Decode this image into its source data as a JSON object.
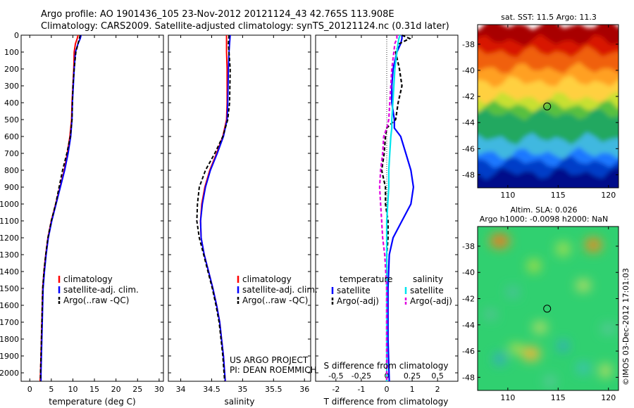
{
  "header": {
    "line1": "Argo profile: AO 1901436_105 23-Nov-2012 20121124_43 42.765S 113.908E",
    "line2": "Climatology: CARS2009. Satellite-adjusted climatology: synTS_20121124.nc (0.31d later)"
  },
  "colors": {
    "climatology": "#ff0000",
    "satellite": "#0000ff",
    "argo": "#000000",
    "satellite_salinity": "#00e5ee",
    "argo_salinity": "#e000e0"
  },
  "chart_data": [
    {
      "type": "line",
      "name": "temperature",
      "xlabel": "temperature (deg C)",
      "xlim": [
        -2,
        31
      ],
      "xticks": [
        0,
        5,
        10,
        15,
        20,
        25,
        30
      ],
      "ylim": [
        2050,
        0
      ],
      "yticks": [
        0,
        100,
        200,
        300,
        400,
        500,
        600,
        700,
        800,
        900,
        1000,
        1100,
        1200,
        1300,
        1400,
        1500,
        1600,
        1700,
        1800,
        1900,
        2000
      ],
      "y": [
        0,
        20,
        50,
        100,
        200,
        300,
        400,
        500,
        600,
        700,
        800,
        900,
        1000,
        1100,
        1200,
        1300,
        1400,
        1500,
        1700,
        1900,
        2000,
        2050
      ],
      "series": [
        {
          "name": "climatology",
          "x": [
            11.2,
            11.0,
            10.6,
            10.3,
            10.2,
            10.0,
            9.8,
            9.7,
            9.3,
            8.7,
            8.0,
            7.0,
            6.0,
            5.0,
            4.2,
            3.7,
            3.3,
            3.0,
            2.8,
            2.6,
            2.5,
            2.4
          ]
        },
        {
          "name": "satellite-adj. clim.",
          "x": [
            11.9,
            11.7,
            11.2,
            10.6,
            10.3,
            10.1,
            9.9,
            9.8,
            9.5,
            8.9,
            8.1,
            7.1,
            6.1,
            5.1,
            4.3,
            3.8,
            3.4,
            3.1,
            2.9,
            2.7,
            2.6,
            2.6
          ]
        },
        {
          "name": "Argo(..raw -QC)",
          "x": [
            11.7,
            11.5,
            11.2,
            10.7,
            10.3,
            10.0,
            9.9,
            9.8,
            9.4,
            8.6,
            7.6,
            6.8,
            6.0,
            5.0,
            4.2,
            3.7,
            3.3,
            3.0,
            2.8,
            2.6,
            2.5,
            2.5
          ]
        }
      ],
      "legend": [
        "climatology",
        "satellite-adj. clim.",
        "Argo(..raw -QC)"
      ]
    },
    {
      "type": "line",
      "name": "salinity",
      "xlabel": "salinity",
      "xlim": [
        33.8,
        36.1
      ],
      "xticks": [
        34,
        34.5,
        35,
        35.5,
        36
      ],
      "xticklabels": [
        "34",
        "34.5",
        "35",
        "35.5",
        "36"
      ],
      "ylim": [
        2050,
        0
      ],
      "y": [
        0,
        50,
        100,
        200,
        400,
        500,
        600,
        700,
        800,
        900,
        1000,
        1100,
        1200,
        1300,
        1400,
        1500,
        1600,
        1700,
        1800,
        1900,
        2000,
        2050
      ],
      "series": [
        {
          "name": "climatology",
          "x": [
            34.74,
            34.74,
            34.74,
            34.75,
            34.75,
            34.74,
            34.68,
            34.58,
            34.47,
            34.39,
            34.34,
            34.32,
            34.33,
            34.38,
            34.45,
            34.52,
            34.58,
            34.63,
            34.66,
            34.69,
            34.71,
            34.72
          ]
        },
        {
          "name": "satellite-adj. clim.",
          "x": [
            34.8,
            34.79,
            34.78,
            34.77,
            34.76,
            34.75,
            34.69,
            34.59,
            34.48,
            34.4,
            34.35,
            34.32,
            34.33,
            34.38,
            34.45,
            34.52,
            34.58,
            34.63,
            34.66,
            34.69,
            34.71,
            34.72
          ]
        },
        {
          "name": "Argo(..raw -QC)",
          "x": [
            34.78,
            34.77,
            34.78,
            34.8,
            34.79,
            34.76,
            34.68,
            34.55,
            34.4,
            34.3,
            34.27,
            34.26,
            34.3,
            34.37,
            34.44,
            34.51,
            34.57,
            34.62,
            34.65,
            34.68,
            34.7,
            34.71
          ]
        }
      ],
      "legend": [
        "climatology",
        "satellite-adj. clim.",
        "Argo(..raw -QC)"
      ],
      "annotation": [
        "US ARGO PROJECT",
        "PI: DEAN ROEMMICH"
      ]
    },
    {
      "type": "line",
      "name": "difference",
      "xlabel": "T difference from climatology",
      "xlabel_top": "S difference from climatology",
      "xlim": [
        -2.8,
        2.8
      ],
      "xticks": [
        -2,
        -1,
        0,
        1,
        2
      ],
      "xticks_s": [
        -0.5,
        -0.25,
        0,
        0.25,
        0.5
      ],
      "ylim": [
        2050,
        0
      ],
      "y": [
        0,
        20,
        50,
        100,
        200,
        300,
        400,
        500,
        550,
        600,
        700,
        800,
        900,
        1000,
        1100,
        1200,
        1300,
        1500,
        1800,
        2050
      ],
      "series": [
        {
          "name": "temperature satellite",
          "x": [
            0.6,
            0.6,
            0.55,
            0.4,
            0.25,
            0.2,
            0.2,
            0.3,
            0.3,
            0.55,
            0.75,
            0.95,
            1.05,
            0.95,
            0.6,
            0.25,
            0.1,
            0.05,
            0.05,
            0.1
          ]
        },
        {
          "name": "temperature Argo(-adj)",
          "x": [
            0.6,
            0.9,
            0.5,
            0.35,
            0.5,
            0.6,
            0.45,
            0.35,
            0.0,
            -0.05,
            -0.1,
            -0.2,
            -0.05,
            -0.05,
            0.05,
            0.05,
            0.0,
            0.0,
            0.0,
            0.0
          ]
        },
        {
          "name": "salinity satellite",
          "x": [
            0.13,
            0.12,
            0.11,
            0.1,
            0.08,
            0.07,
            0.06,
            0.05,
            0.05,
            0.04,
            0.03,
            0.02,
            0.02,
            0.01,
            0.0,
            0.0,
            0.0,
            0.0,
            0.0,
            0.0
          ]
        },
        {
          "name": "salinity Argo(-adj)",
          "x": [
            0.1,
            0.1,
            0.08,
            0.07,
            0.05,
            0.04,
            0.03,
            0.02,
            0.0,
            -0.03,
            -0.04,
            -0.06,
            -0.07,
            -0.06,
            -0.05,
            -0.04,
            -0.02,
            0.0,
            0.0,
            0.0
          ]
        }
      ],
      "legend_groups": [
        {
          "title": "temperature",
          "items": [
            "satellite",
            "Argo(-adj)"
          ]
        },
        {
          "title": "salinity",
          "items": [
            "satellite",
            "Argo(-adj)"
          ]
        }
      ]
    },
    {
      "type": "heatmap",
      "name": "sst_map",
      "title": "sat. SST: 11.5 Argo: 11.3",
      "xlim": [
        107,
        121
      ],
      "ylim": [
        -49,
        -36.5
      ],
      "xticks": [
        110,
        115,
        120
      ],
      "yticks": [
        -38,
        -40,
        -42,
        -44,
        -46,
        -48
      ],
      "marker": {
        "lon": 113.908,
        "lat": -42.765
      }
    },
    {
      "type": "heatmap",
      "name": "sla_map",
      "title": "Altim. SLA: 0.026",
      "subtitle": "Argo h1000: -0.0098 h2000: NaN",
      "xlim": [
        107,
        121
      ],
      "ylim": [
        -49,
        -36.5
      ],
      "xticks": [
        110,
        115,
        120
      ],
      "yticks": [
        -38,
        -40,
        -42,
        -44,
        -46,
        -48
      ],
      "marker": {
        "lon": 113.908,
        "lat": -42.765
      }
    }
  ],
  "footer": {
    "stamp": "©IMOS 03-Dec-2012 17:01:03"
  }
}
